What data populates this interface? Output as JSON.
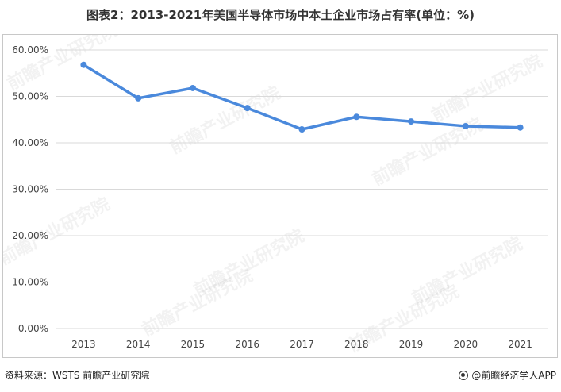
{
  "title": "图表2：2013-2021年美国半导体市场中本土企业市场占有率(单位：%)",
  "source": "资料来源：WSTS 前瞻产业研究院",
  "brand": "@前瞻经济学人APP",
  "watermark": "前瞻产业研究院",
  "chart_data": {
    "type": "line",
    "title": "图表2：2013-2021年美国半导体市场中本土企业市场占有率(单位：%)",
    "xlabel": "",
    "ylabel": "",
    "categories": [
      "2013",
      "2014",
      "2015",
      "2016",
      "2017",
      "2018",
      "2019",
      "2020",
      "2021"
    ],
    "series": [
      {
        "values": [
          56.8,
          49.6,
          51.8,
          47.5,
          42.9,
          45.6,
          44.6,
          43.6,
          43.3
        ],
        "color": "#4a89dc"
      }
    ],
    "ylim": [
      0,
      60
    ],
    "yticks": [
      0,
      10,
      20,
      30,
      40,
      50,
      60
    ],
    "ytick_labels": [
      "0.00%",
      "10.00%",
      "20.00%",
      "30.00%",
      "40.00%",
      "50.00%",
      "60.00%"
    ],
    "grid": true,
    "legend": "none"
  }
}
